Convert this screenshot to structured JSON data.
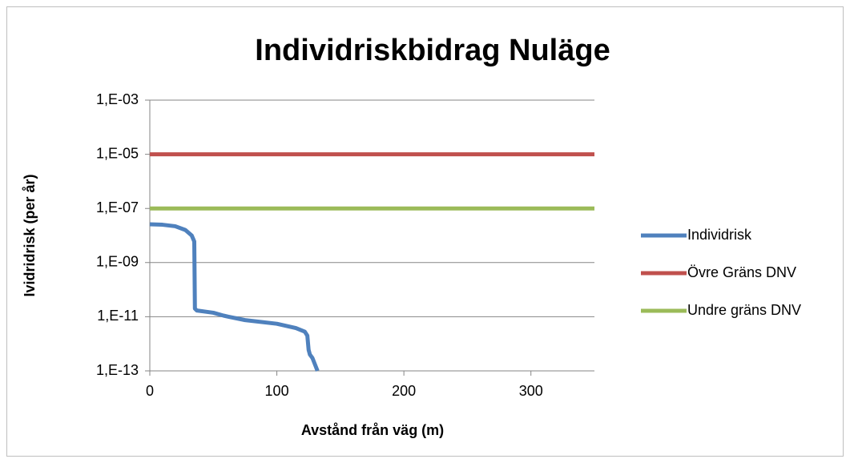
{
  "chart_data": {
    "type": "line",
    "title": "Individriskbidrag Nuläge",
    "xlabel": "Avstånd från väg (m)",
    "ylabel": "Ividridrisk (per år)",
    "xlim": [
      0,
      350
    ],
    "xticks": [
      0,
      100,
      200,
      300
    ],
    "ylim": [
      1e-13,
      0.001
    ],
    "yscale": "log",
    "yticks": [
      {
        "value": 1e-13,
        "label": "1,E-13"
      },
      {
        "value": 1e-11,
        "label": "1,E-11"
      },
      {
        "value": 1e-09,
        "label": "1,E-09"
      },
      {
        "value": 1e-07,
        "label": "1,E-07"
      },
      {
        "value": 1e-05,
        "label": "1,E-05"
      },
      {
        "value": 0.001,
        "label": "1,E-03"
      }
    ],
    "grid": true,
    "legend": "right",
    "series": [
      {
        "name": "Individrisk",
        "color": "#4f81bd",
        "x": [
          0,
          10,
          20,
          28,
          33,
          35,
          35.5,
          37,
          50,
          58,
          62,
          75,
          100,
          115,
          122,
          124,
          125,
          126,
          128,
          132
        ],
        "values": [
          2.6e-08,
          2.5e-08,
          2.2e-08,
          1.6e-08,
          1e-08,
          6e-09,
          2e-11,
          1.7e-11,
          1.4e-11,
          1.1e-11,
          1e-11,
          7.5e-12,
          5.5e-12,
          3.8e-12,
          2.8e-12,
          2e-12,
          6e-13,
          4e-13,
          3e-13,
          1e-13
        ]
      },
      {
        "name": "Övre Gräns DNV",
        "color": "#c0504d",
        "x": [
          0,
          350
        ],
        "values": [
          1e-05,
          1e-05
        ]
      },
      {
        "name": "Undre gräns DNV",
        "color": "#9bbb59",
        "x": [
          0,
          350
        ],
        "values": [
          1e-07,
          1e-07
        ]
      }
    ]
  }
}
